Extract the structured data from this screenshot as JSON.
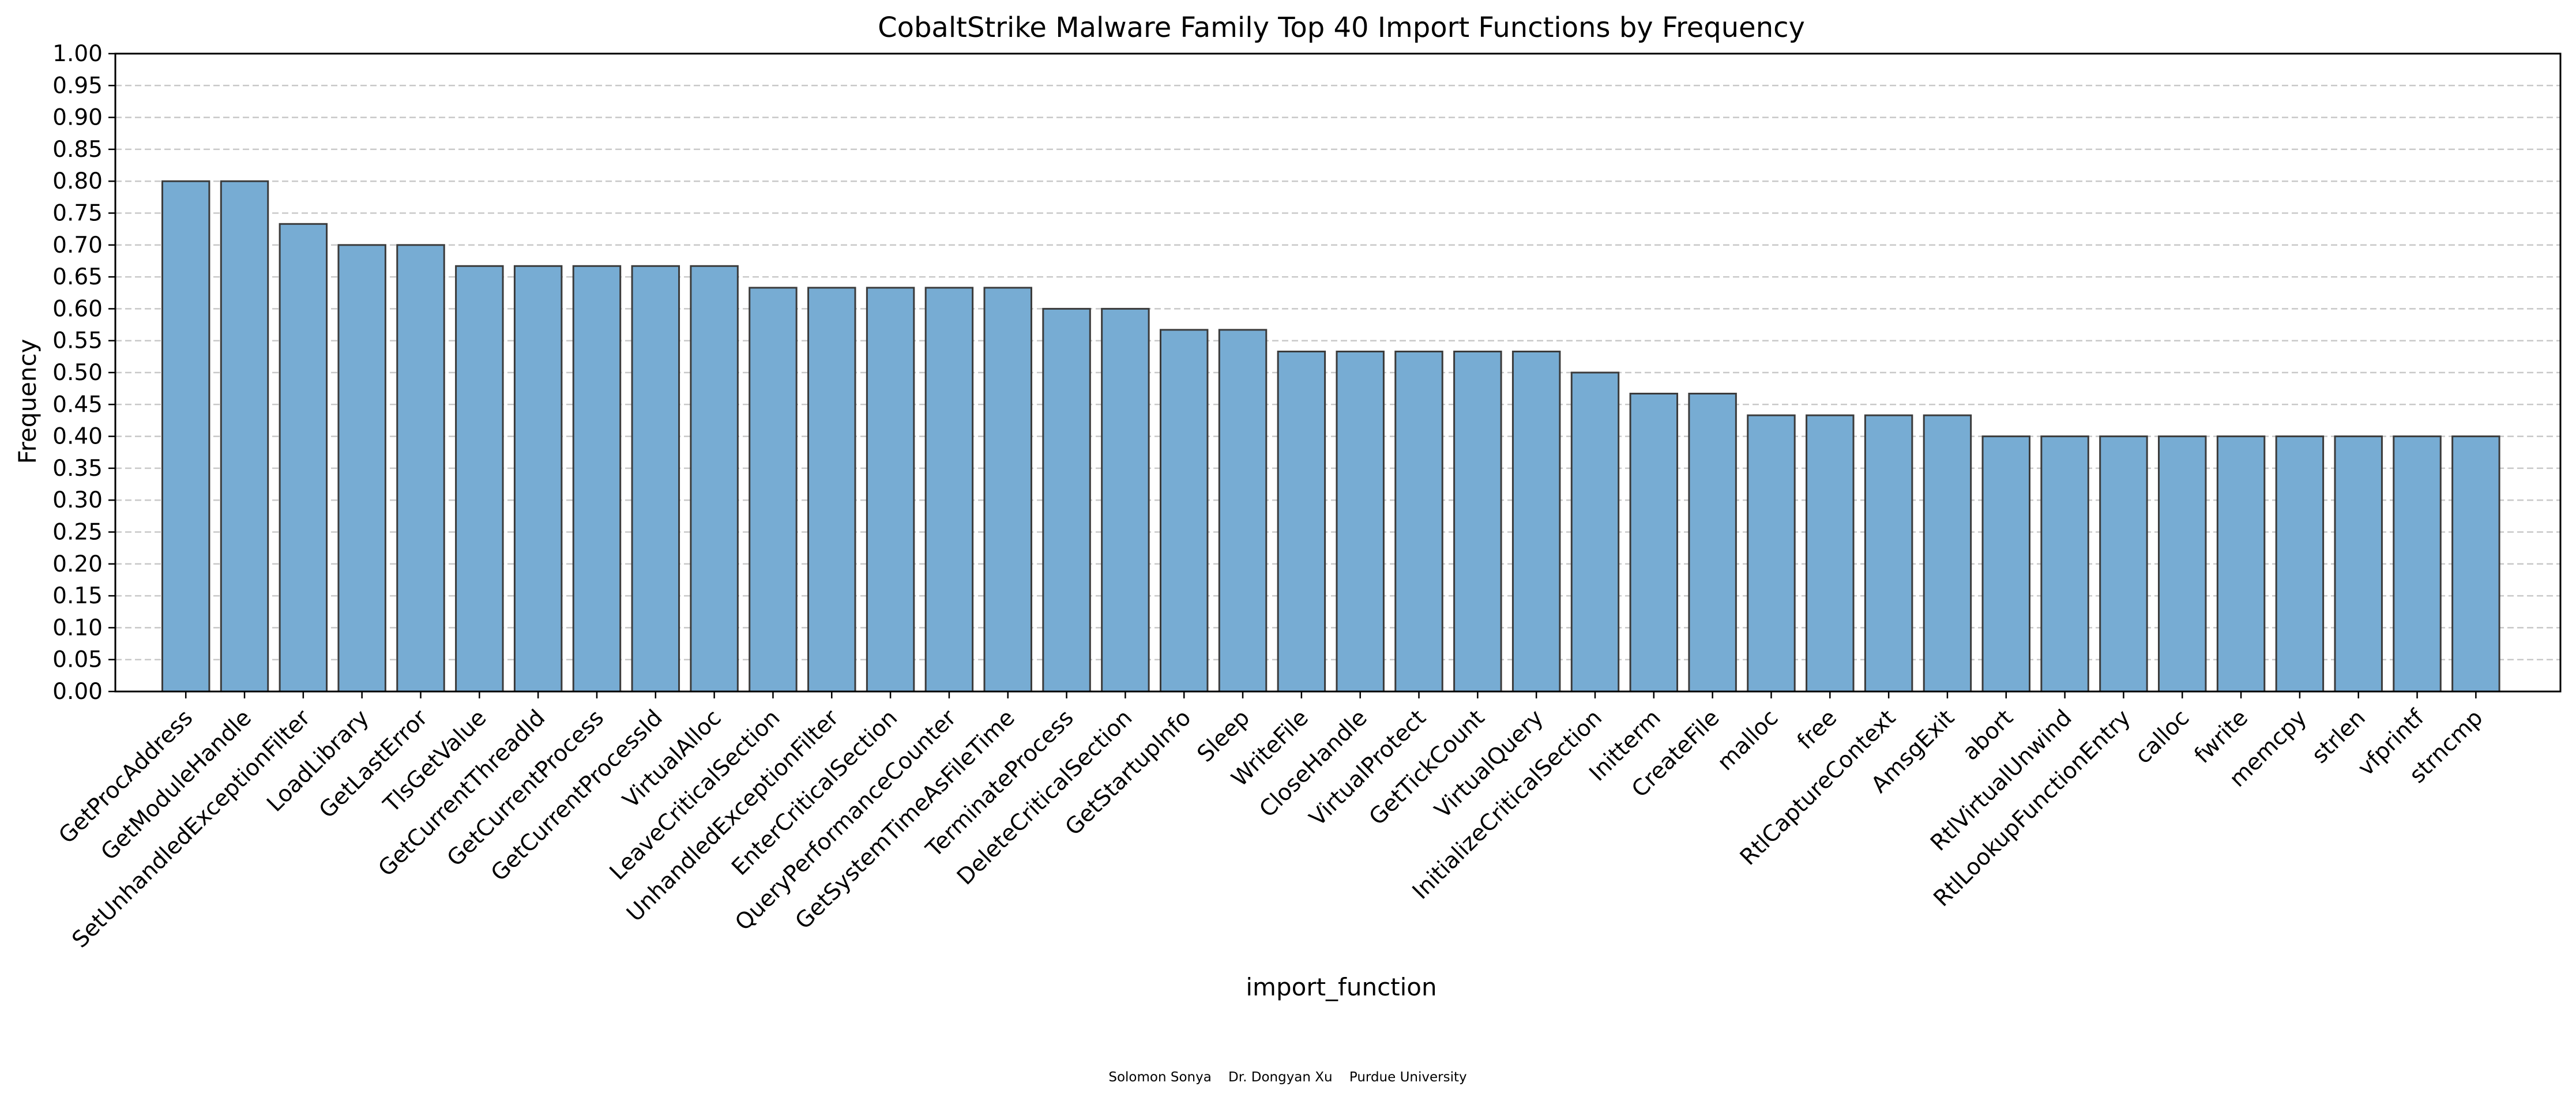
{
  "chart_data": {
    "type": "bar",
    "title": "CobaltStrike Malware Family Top 40 Import Functions by Frequency",
    "xlabel": "import_function",
    "ylabel": "Frequency",
    "ylim": [
      0,
      1.0
    ],
    "yticks": [
      "0.00",
      "0.05",
      "0.10",
      "0.15",
      "0.20",
      "0.25",
      "0.30",
      "0.35",
      "0.40",
      "0.45",
      "0.50",
      "0.55",
      "0.60",
      "0.65",
      "0.70",
      "0.75",
      "0.80",
      "0.85",
      "0.90",
      "0.95",
      "1.00"
    ],
    "grid": "y-dashed",
    "categories": [
      "GetProcAddress",
      "GetModuleHandle",
      "SetUnhandledExceptionFilter",
      "LoadLibrary",
      "GetLastError",
      "TlsGetValue",
      "GetCurrentThreadId",
      "GetCurrentProcess",
      "GetCurrentProcessId",
      "VirtualAlloc",
      "LeaveCriticalSection",
      "UnhandledExceptionFilter",
      "EnterCriticalSection",
      "QueryPerformanceCounter",
      "GetSystemTimeAsFileTime",
      "TerminateProcess",
      "DeleteCriticalSection",
      "GetStartupInfo",
      "Sleep",
      "WriteFile",
      "CloseHandle",
      "VirtualProtect",
      "GetTickCount",
      "VirtualQuery",
      "InitializeCriticalSection",
      "Initterm",
      "CreateFile",
      "malloc",
      "free",
      "RtlCaptureContext",
      "AmsgExit",
      "abort",
      "RtlVirtualUnwind",
      "RtlLookupFunctionEntry",
      "calloc",
      "fwrite",
      "memcpy",
      "strlen",
      "vfprintf",
      "strncmp"
    ],
    "values": [
      0.8,
      0.8,
      0.733,
      0.7,
      0.7,
      0.667,
      0.667,
      0.667,
      0.667,
      0.667,
      0.633,
      0.633,
      0.633,
      0.633,
      0.633,
      0.6,
      0.6,
      0.567,
      0.567,
      0.533,
      0.533,
      0.533,
      0.533,
      0.533,
      0.5,
      0.467,
      0.467,
      0.433,
      0.433,
      0.433,
      0.433,
      0.4,
      0.4,
      0.4,
      0.4,
      0.4,
      0.4,
      0.4,
      0.4,
      0.4
    ],
    "colors": {
      "bar_fill": "#77acd3",
      "bar_edge": "#3b3b3b",
      "grid": "#c8c8c8",
      "axis": "#000000"
    }
  },
  "footer": {
    "credits": "Solomon Sonya    Dr. Dongyan Xu    Purdue University"
  }
}
